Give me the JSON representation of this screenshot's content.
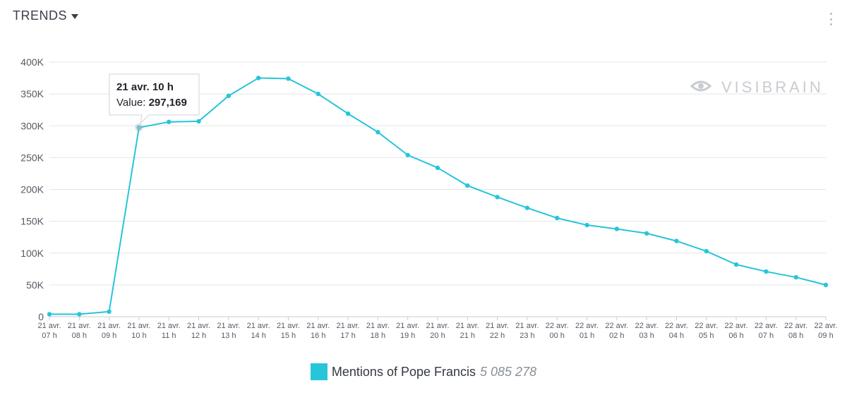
{
  "header": {
    "title": "TRENDS"
  },
  "watermark": {
    "text": "VISIBRAIN"
  },
  "legend": {
    "name": "Mentions of Pope Francis",
    "total": "5 085 278"
  },
  "tooltip": {
    "title": "21 avr. 10 h",
    "value_label": "Value:",
    "value": "297,169",
    "point_index": 3
  },
  "colors": {
    "series": "#26c5da",
    "grid": "#e3e5e8",
    "axis_text": "#555a63"
  },
  "chart_data": {
    "type": "line",
    "title": "TRENDS",
    "xlabel": "",
    "ylabel": "",
    "ylim": [
      0,
      400000
    ],
    "yticks": [
      0,
      50000,
      100000,
      150000,
      200000,
      250000,
      300000,
      350000,
      400000
    ],
    "ytick_labels": [
      "0",
      "50K",
      "100K",
      "150K",
      "200K",
      "250K",
      "300K",
      "350K",
      "400K"
    ],
    "categories": [
      [
        "21 avr.",
        "07 h"
      ],
      [
        "21 avr.",
        "08 h"
      ],
      [
        "21 avr.",
        "09 h"
      ],
      [
        "21 avr.",
        "10 h"
      ],
      [
        "21 avr.",
        "11 h"
      ],
      [
        "21 avr.",
        "12 h"
      ],
      [
        "21 avr.",
        "13 h"
      ],
      [
        "21 avr.",
        "14 h"
      ],
      [
        "21 avr.",
        "15 h"
      ],
      [
        "21 avr.",
        "16 h"
      ],
      [
        "21 avr.",
        "17 h"
      ],
      [
        "21 avr.",
        "18 h"
      ],
      [
        "21 avr.",
        "19 h"
      ],
      [
        "21 avr.",
        "20 h"
      ],
      [
        "21 avr.",
        "21 h"
      ],
      [
        "21 avr.",
        "22 h"
      ],
      [
        "21 avr.",
        "23 h"
      ],
      [
        "22 avr.",
        "00 h"
      ],
      [
        "22 avr.",
        "01 h"
      ],
      [
        "22 avr.",
        "02 h"
      ],
      [
        "22 avr.",
        "03 h"
      ],
      [
        "22 avr.",
        "04 h"
      ],
      [
        "22 avr.",
        "05 h"
      ],
      [
        "22 avr.",
        "06 h"
      ],
      [
        "22 avr.",
        "07 h"
      ],
      [
        "22 avr.",
        "08 h"
      ],
      [
        "22 avr.",
        "09 h"
      ]
    ],
    "series": [
      {
        "name": "Mentions of Pope Francis",
        "values": [
          4000,
          4000,
          8000,
          297169,
          306000,
          307000,
          347000,
          375000,
          374000,
          350000,
          319000,
          290000,
          254000,
          234000,
          206000,
          188000,
          171000,
          155000,
          144000,
          138000,
          131000,
          119000,
          103000,
          82000,
          71000,
          62000,
          50000
        ]
      }
    ]
  }
}
